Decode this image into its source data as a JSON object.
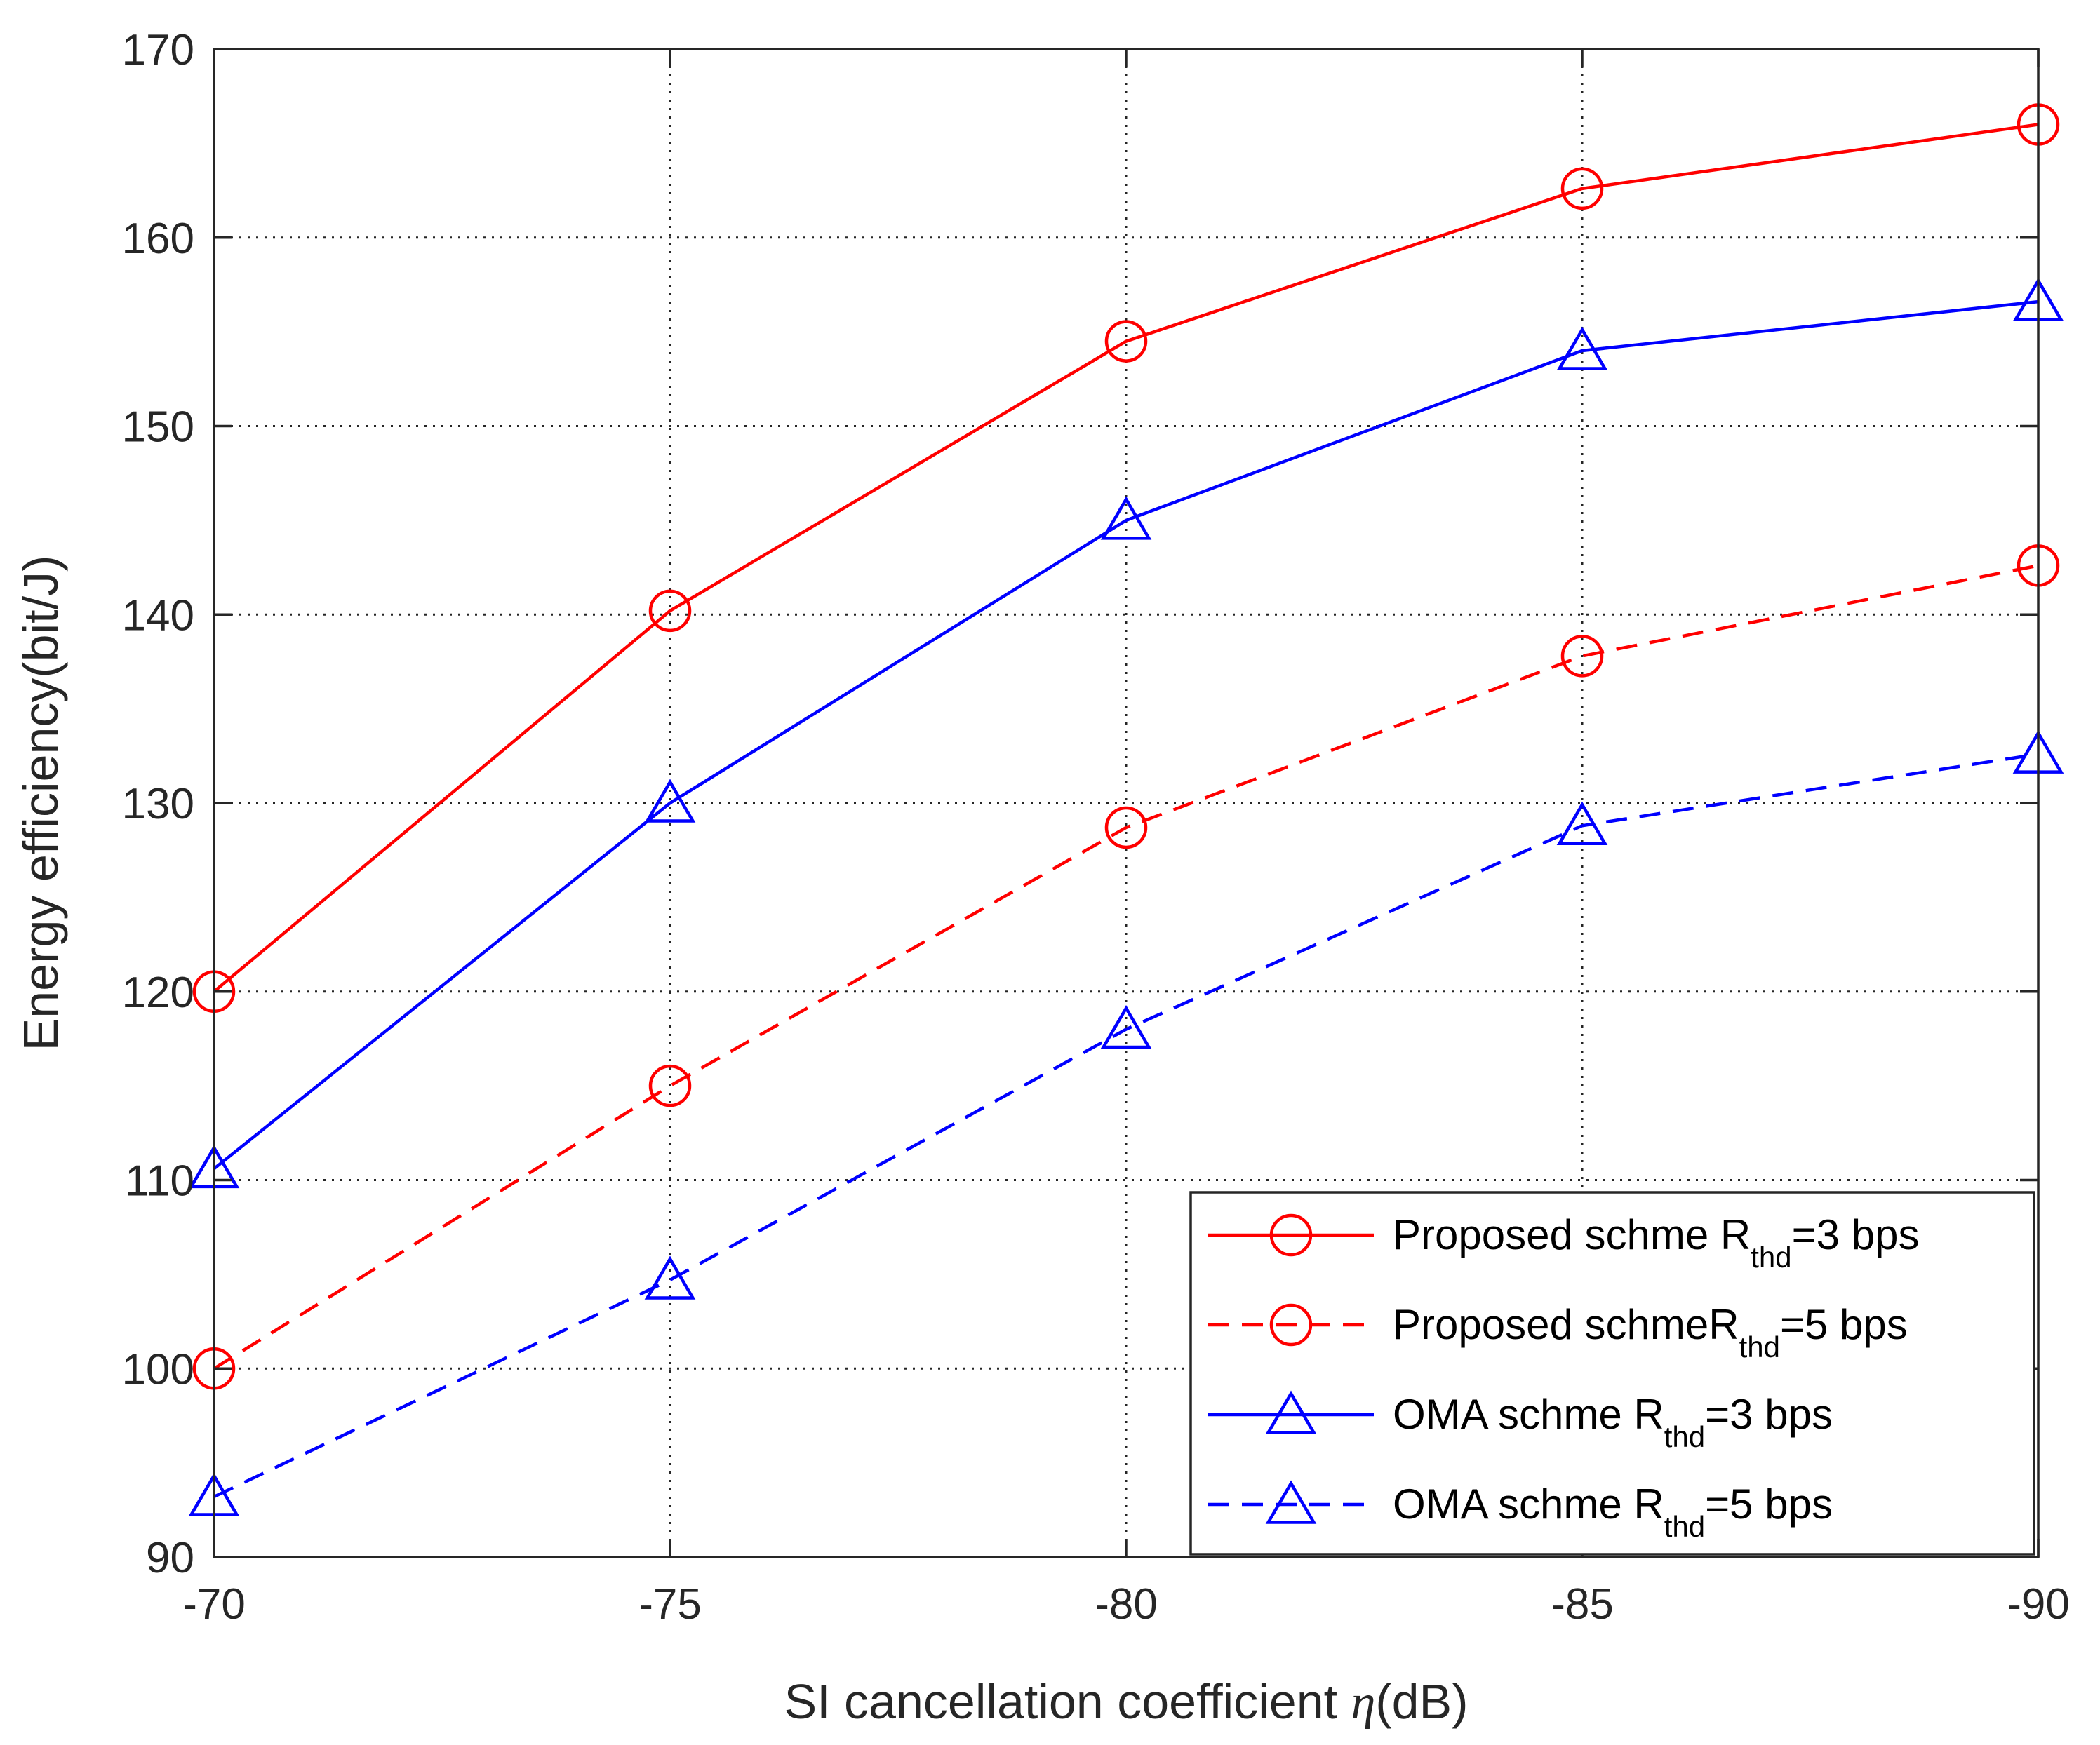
{
  "chart_data": {
    "type": "line",
    "x": [
      -70,
      -75,
      -80,
      -85,
      -90
    ],
    "xticks": [
      "-70",
      "-75",
      "-80",
      "-85",
      "-90"
    ],
    "yticks": [
      "90",
      "100",
      "110",
      "120",
      "130",
      "140",
      "150",
      "160",
      "170"
    ],
    "xlim": [
      -70,
      -90
    ],
    "ylim": [
      90,
      170
    ],
    "xlabel_prefix": "SI cancellation coefficient ",
    "xlabel_symbol": "η",
    "xlabel_suffix": "(dB)",
    "ylabel": "Energy efficiency(bit/J)",
    "grid": true,
    "legend_position": "bottom-right",
    "series": [
      {
        "name": "Proposed schme R_thd=3 bps",
        "label_main": "Proposed schme R",
        "label_sub": "thd",
        "label_tail": "=3 bps",
        "color": "#ff0000",
        "linestyle": "solid",
        "marker": "circle",
        "values": [
          120,
          140.2,
          154.5,
          162.6,
          166
        ]
      },
      {
        "name": "Proposed schmeR_thd=5 bps",
        "label_main": "Proposed schmeR",
        "label_sub": "thd",
        "label_tail": "=5 bps",
        "color": "#ff0000",
        "linestyle": "dashed",
        "marker": "circle",
        "values": [
          100,
          115,
          128.7,
          137.8,
          142.6
        ]
      },
      {
        "name": "OMA schme R_thd=3 bps",
        "label_main": "OMA schme R",
        "label_sub": "thd",
        "label_tail": "=3 bps",
        "color": "#0000ff",
        "linestyle": "solid",
        "marker": "triangle",
        "values": [
          110.6,
          130,
          145,
          154,
          156.6
        ]
      },
      {
        "name": "OMA schme R_thd=5 bps",
        "label_main": "OMA schme R",
        "label_sub": "thd",
        "label_tail": "=5 bps",
        "color": "#0000ff",
        "linestyle": "dashed",
        "marker": "triangle",
        "values": [
          93.2,
          104.7,
          118,
          128.8,
          132.6
        ]
      }
    ]
  }
}
